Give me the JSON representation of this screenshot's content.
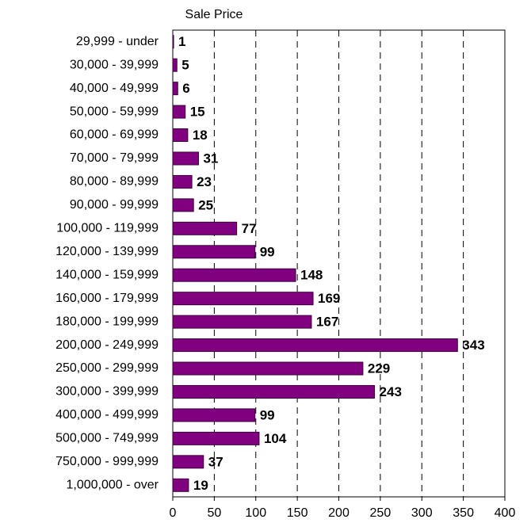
{
  "chart_data": {
    "type": "bar",
    "orientation": "horizontal",
    "title": "Sale Price",
    "categories": [
      "29,999 - under",
      "30,000 - 39,999",
      "40,000 - 49,999",
      "50,000 - 59,999",
      "60,000 - 69,999",
      "70,000 - 79,999",
      "80,000 - 89,999",
      "90,000 - 99,999",
      "100,000 - 119,999",
      "120,000 - 139,999",
      "140,000 - 159,999",
      "160,000 - 179,999",
      "180,000 - 199,999",
      "200,000 - 249,999",
      "250,000 - 299,999",
      "300,000 - 399,999",
      "400,000 - 499,999",
      "500,000 - 749,999",
      "750,000 - 999,999",
      "1,000,000 - over"
    ],
    "values": [
      1,
      5,
      6,
      15,
      18,
      31,
      23,
      25,
      77,
      99,
      148,
      169,
      167,
      343,
      229,
      243,
      99,
      104,
      37,
      19
    ],
    "color": "#800080",
    "xlim": [
      0,
      400
    ],
    "xticks": [
      0,
      50,
      100,
      150,
      200,
      250,
      300,
      350,
      400
    ],
    "grid": true
  }
}
